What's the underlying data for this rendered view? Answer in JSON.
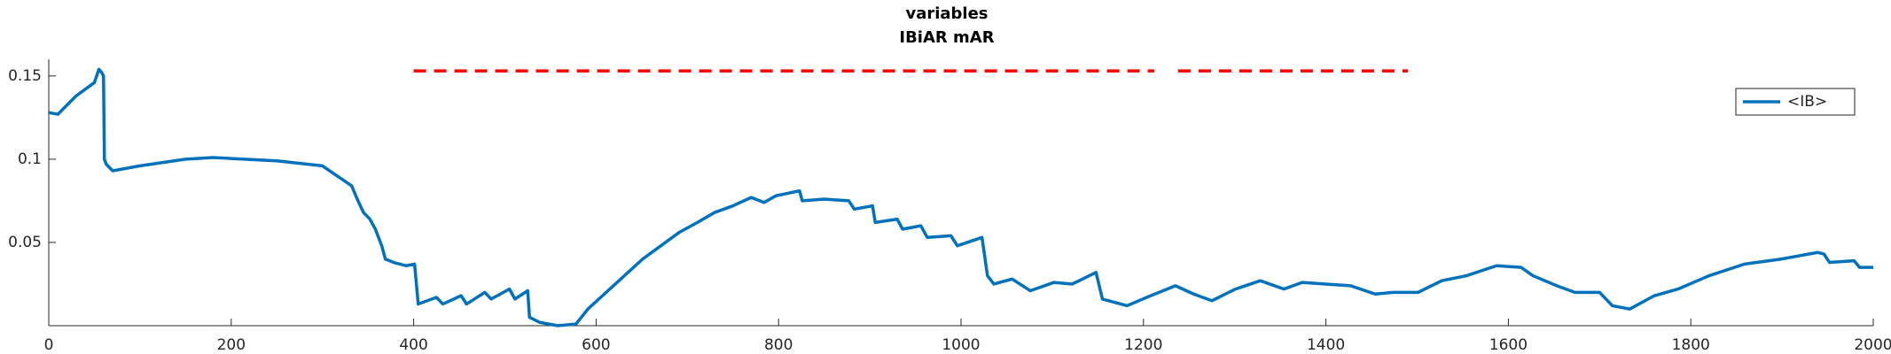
{
  "chart_data": {
    "type": "line",
    "title": "variables",
    "subtitle": "IBiAR mAR",
    "xlim": [
      0,
      2000
    ],
    "xticks": [
      0,
      200,
      400,
      600,
      800,
      1000,
      1200,
      1400,
      1600,
      1800,
      2000
    ],
    "ylim": [
      0,
      0.16
    ],
    "yticks": [
      0.05,
      0.1,
      0.15
    ],
    "legend": "northeast",
    "series": [
      {
        "name": "<IB>",
        "color": "#0072bd",
        "x": [
          0,
          10,
          30,
          50,
          55,
          58,
          60,
          61,
          63,
          70,
          100,
          150,
          180,
          250,
          300,
          332,
          339,
          345,
          352,
          358,
          365,
          369,
          378,
          392,
          401,
          405,
          425,
          432,
          452,
          458,
          478,
          485,
          505,
          511,
          525,
          527,
          538,
          558,
          578,
          591,
          611,
          631,
          651,
          671,
          691,
          711,
          730,
          750,
          770,
          784,
          797,
          823,
          826,
          850,
          877,
          883,
          903,
          906,
          930,
          936,
          956,
          963,
          989,
          996,
          1023,
          1029,
          1036,
          1056,
          1076,
          1102,
          1122,
          1148,
          1155,
          1182,
          1208,
          1235,
          1255,
          1275,
          1301,
          1328,
          1354,
          1374,
          1400,
          1427,
          1454,
          1474,
          1501,
          1527,
          1554,
          1587,
          1614,
          1627,
          1653,
          1673,
          1700,
          1714,
          1733,
          1760,
          1786,
          1820,
          1859,
          1899,
          1939,
          1946,
          1952,
          1979,
          1985,
          2000
        ],
        "values": [
          0.128,
          0.127,
          0.138,
          0.146,
          0.154,
          0.152,
          0.15,
          0.1,
          0.097,
          0.093,
          0.096,
          0.1,
          0.101,
          0.099,
          0.096,
          0.084,
          0.075,
          0.068,
          0.064,
          0.058,
          0.048,
          0.04,
          0.038,
          0.036,
          0.037,
          0.013,
          0.017,
          0.013,
          0.018,
          0.013,
          0.02,
          0.016,
          0.022,
          0.016,
          0.021,
          0.005,
          0.002,
          0.0,
          0.001,
          0.01,
          0.02,
          0.03,
          0.04,
          0.048,
          0.056,
          0.062,
          0.068,
          0.072,
          0.077,
          0.074,
          0.078,
          0.081,
          0.075,
          0.076,
          0.075,
          0.07,
          0.072,
          0.062,
          0.064,
          0.058,
          0.06,
          0.053,
          0.054,
          0.048,
          0.053,
          0.03,
          0.025,
          0.028,
          0.021,
          0.026,
          0.025,
          0.032,
          0.016,
          0.012,
          0.018,
          0.024,
          0.019,
          0.015,
          0.022,
          0.027,
          0.022,
          0.026,
          0.025,
          0.024,
          0.019,
          0.02,
          0.02,
          0.027,
          0.03,
          0.036,
          0.035,
          0.03,
          0.024,
          0.02,
          0.02,
          0.012,
          0.01,
          0.018,
          0.022,
          0.03,
          0.037,
          0.04,
          0.044,
          0.043,
          0.038,
          0.039,
          0.035,
          0.035
        ]
      }
    ],
    "reference_line": {
      "color": "#ff0000",
      "x": [
        400,
        1212,
        1225,
        1238,
        1490
      ],
      "values": [
        0.153,
        0.153,
        null,
        0.153,
        0.153
      ]
    }
  }
}
